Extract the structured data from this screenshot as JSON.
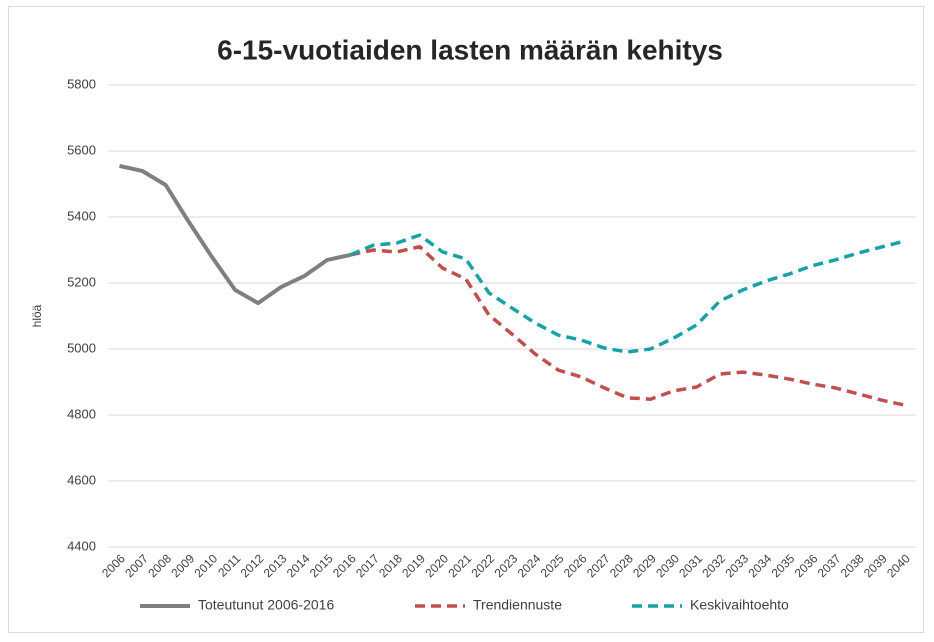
{
  "chart_data": {
    "type": "line",
    "title": "6-15-vuotiaiden lasten määrän kehitys",
    "y_label": "hlöä",
    "categories": [
      "2006",
      "2007",
      "2008",
      "2009",
      "2010",
      "2011",
      "2012",
      "2013",
      "2014",
      "2015",
      "2016",
      "2017",
      "2018",
      "2019",
      "2020",
      "2021",
      "2022",
      "2023",
      "2024",
      "2025",
      "2026",
      "2027",
      "2028",
      "2029",
      "2030",
      "2031",
      "2032",
      "2033",
      "2034",
      "2035",
      "2036",
      "2037",
      "2038",
      "2039",
      "2040"
    ],
    "series": [
      {
        "name": "Toteutunut 2006-2016",
        "color": "#7f7f7f",
        "style": "solid",
        "values": [
          5555,
          5539,
          5497,
          5385,
          5279,
          5179,
          5139,
          5188,
          5221,
          5270,
          5285,
          null,
          null,
          null,
          null,
          null,
          null,
          null,
          null,
          null,
          null,
          null,
          null,
          null,
          null,
          null,
          null,
          null,
          null,
          null,
          null,
          null,
          null,
          null,
          null
        ]
      },
      {
        "name": "Trendiennuste",
        "color": "#c0504d",
        "style": "dashed",
        "values": [
          null,
          null,
          null,
          null,
          null,
          null,
          null,
          null,
          null,
          null,
          5285,
          5300,
          5294,
          5310,
          5245,
          5212,
          5103,
          5045,
          4985,
          4936,
          4915,
          4882,
          4852,
          4848,
          4873,
          4885,
          4924,
          4930,
          4921,
          4909,
          4894,
          4882,
          4864,
          4845,
          4830
        ]
      },
      {
        "name": "Keskivaihtoehto",
        "color": "#17a2a6",
        "style": "dashed",
        "values": [
          null,
          null,
          null,
          null,
          null,
          null,
          null,
          null,
          null,
          null,
          5285,
          5315,
          5321,
          5345,
          5294,
          5273,
          5170,
          5124,
          5079,
          5042,
          5027,
          5003,
          4991,
          5000,
          5033,
          5073,
          5145,
          5179,
          5206,
          5227,
          5252,
          5270,
          5291,
          5309,
          5327
        ]
      }
    ],
    "ylim": [
      4400,
      5800
    ],
    "yticks": [
      4400,
      4600,
      4800,
      5000,
      5200,
      5400,
      5600,
      5800
    ],
    "grid": true,
    "legend": "bottom"
  }
}
